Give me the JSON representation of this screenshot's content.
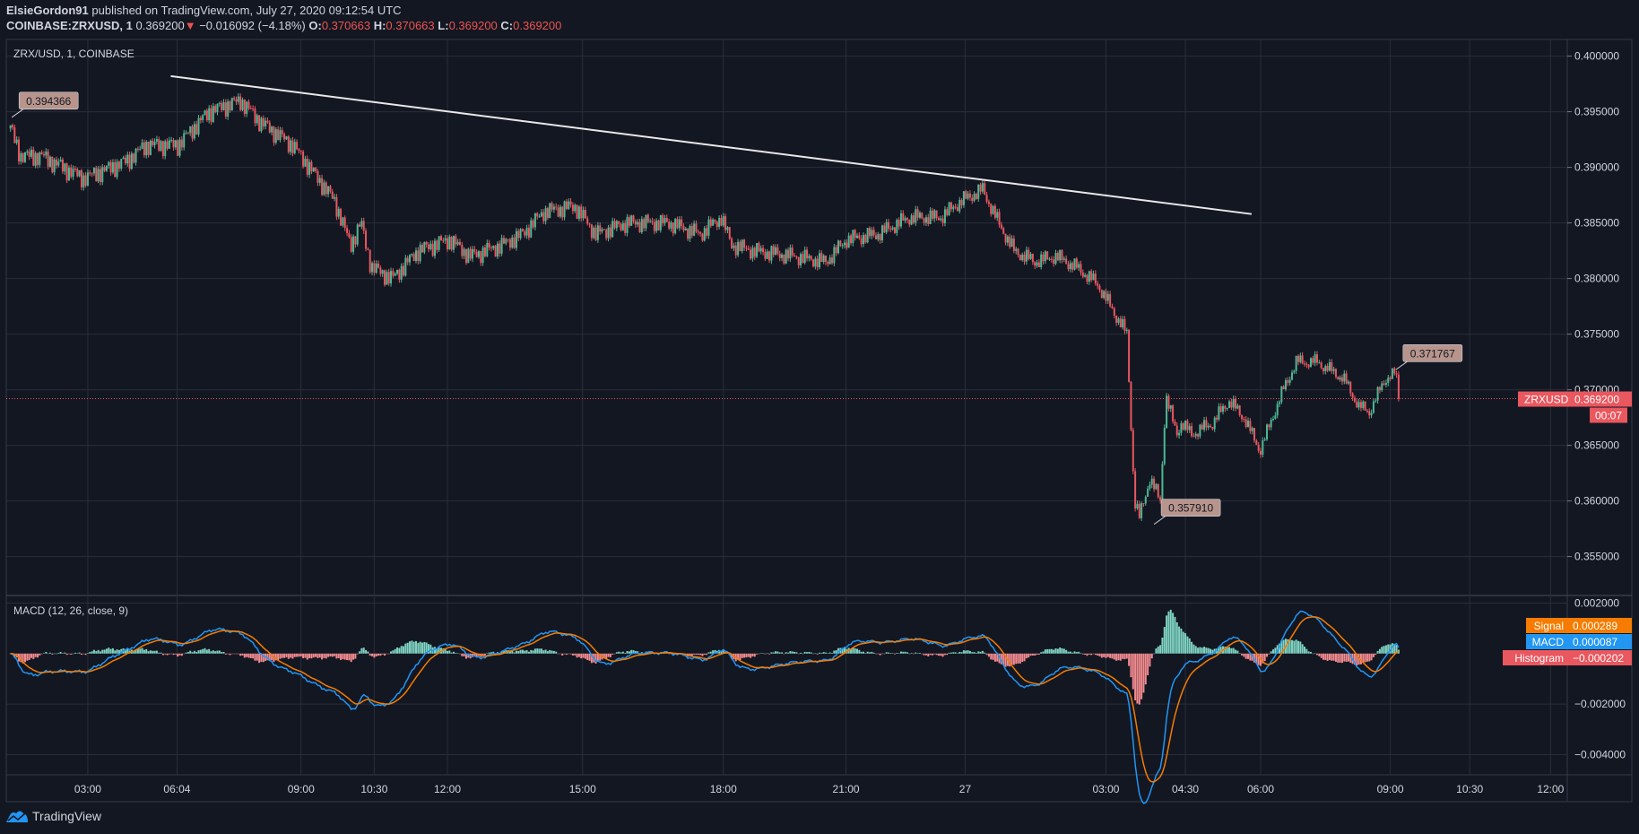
{
  "header": {
    "author": "ElsieGordon91",
    "published": "published on TradingView.com, July 27, 2020 09:12:54 UTC",
    "symbol": "COINBASE:ZRXUSD, 1",
    "last": "0.369200",
    "change": "−0.016092 (−4.18%)",
    "o_label": "O:",
    "o": "0.370663",
    "h_label": "H:",
    "h": "0.370663",
    "l_label": "L:",
    "l": "0.369200",
    "c_label": "C:",
    "c": "0.369200"
  },
  "main_pane_title": "ZRX/USD, 1, COINBASE",
  "macd_pane_title": "MACD (12, 26, close, 9)",
  "footer": {
    "brand": "TradingView",
    "icon": "tradingview-cloud-logo"
  },
  "colors": {
    "bg": "#131722",
    "grid": "#2a2e39",
    "up": "#4db895",
    "down": "#e9575f",
    "macd": "#2196f3",
    "signal": "#f57c00",
    "trend": "#e8e8e8",
    "tag": "#b7958c"
  },
  "chart_data": [
    {
      "type": "candlestick",
      "title": "ZRX/USD, 1, COINBASE",
      "x_unit": "1-minute bar index",
      "ylim": [
        0.3515,
        0.4015
      ],
      "y_ticks": [
        0.4,
        0.395,
        0.39,
        0.385,
        0.38,
        0.375,
        0.37,
        0.365,
        0.36,
        0.355
      ],
      "y_tick_labels": [
        "0.400000",
        "0.395000",
        "0.390000",
        "0.385000",
        "0.380000",
        "0.375000",
        "0.370000",
        "0.365000",
        "0.360000",
        "0.355000"
      ],
      "x_range": [
        -6,
        2234
      ],
      "x_ticks": [
        111,
        239,
        417,
        522,
        627,
        821,
        1023,
        1199,
        1370,
        1572,
        1686,
        1794,
        1980,
        2094,
        2210
      ],
      "x_tick_labels": [
        "03:00",
        "06:04",
        "09:00",
        "10:30",
        "12:00",
        "15:00",
        "18:00",
        "21:00",
        "27",
        "03:00",
        "04:30",
        "06:00",
        "09:00",
        "10:30",
        "12:00"
      ],
      "close_path": [
        [
          0,
          0.3935
        ],
        [
          15,
          0.391
        ],
        [
          45,
          0.391
        ],
        [
          105,
          0.389
        ],
        [
          165,
          0.3905
        ],
        [
          195,
          0.392
        ],
        [
          240,
          0.392
        ],
        [
          285,
          0.395
        ],
        [
          330,
          0.396
        ],
        [
          360,
          0.394
        ],
        [
          405,
          0.392
        ],
        [
          435,
          0.3895
        ],
        [
          465,
          0.387
        ],
        [
          488,
          0.383
        ],
        [
          503,
          0.385
        ],
        [
          518,
          0.381
        ],
        [
          548,
          0.38
        ],
        [
          585,
          0.3825
        ],
        [
          630,
          0.3835
        ],
        [
          660,
          0.382
        ],
        [
          705,
          0.383
        ],
        [
          735,
          0.384
        ],
        [
          765,
          0.386
        ],
        [
          810,
          0.3865
        ],
        [
          840,
          0.384
        ],
        [
          885,
          0.385
        ],
        [
          945,
          0.385
        ],
        [
          990,
          0.384
        ],
        [
          1020,
          0.3855
        ],
        [
          1035,
          0.383
        ],
        [
          1065,
          0.3825
        ],
        [
          1125,
          0.382
        ],
        [
          1170,
          0.3815
        ],
        [
          1200,
          0.3835
        ],
        [
          1245,
          0.384
        ],
        [
          1290,
          0.3855
        ],
        [
          1335,
          0.3855
        ],
        [
          1365,
          0.387
        ],
        [
          1395,
          0.388
        ],
        [
          1418,
          0.385
        ],
        [
          1440,
          0.3825
        ],
        [
          1470,
          0.3815
        ],
        [
          1500,
          0.382
        ],
        [
          1530,
          0.381
        ],
        [
          1560,
          0.3795
        ],
        [
          1583,
          0.377
        ],
        [
          1602,
          0.375
        ],
        [
          1613,
          0.36
        ],
        [
          1620,
          0.3585
        ],
        [
          1635,
          0.362
        ],
        [
          1650,
          0.36
        ],
        [
          1658,
          0.3695
        ],
        [
          1673,
          0.366
        ],
        [
          1680,
          0.367
        ],
        [
          1695,
          0.366
        ],
        [
          1725,
          0.367
        ],
        [
          1748,
          0.369
        ],
        [
          1770,
          0.3675
        ],
        [
          1793,
          0.3645
        ],
        [
          1808,
          0.367
        ],
        [
          1823,
          0.3695
        ],
        [
          1845,
          0.3725
        ],
        [
          1875,
          0.3725
        ],
        [
          1913,
          0.371
        ],
        [
          1935,
          0.3685
        ],
        [
          1950,
          0.368
        ],
        [
          1973,
          0.371
        ],
        [
          1988,
          0.3715
        ],
        [
          1992,
          0.3692
        ]
      ],
      "trend_line": [
        [
          230,
          0.3982
        ],
        [
          1781,
          0.3858
        ]
      ],
      "price_labels": [
        {
          "bar": 2,
          "price": 0.3945,
          "text": "0.394366"
        },
        {
          "bar": 1641,
          "price": 0.3579,
          "text": "0.357910"
        },
        {
          "bar": 1988,
          "price": 0.3718,
          "text": "0.371767"
        }
      ],
      "last_price": 0.3692,
      "last_price_tag": {
        "symbol": "ZRXUSD",
        "value": "0.369200",
        "countdown": "00:07"
      }
    },
    {
      "type": "line",
      "title": "MACD (12, 26, close, 9)",
      "ylim": [
        -0.0048,
        0.0023
      ],
      "y_ticks": [
        0.002,
        -0.002,
        -0.004
      ],
      "y_tick_labels": [
        "0.002000",
        "−0.002000",
        "−0.004000"
      ],
      "series": [
        {
          "name": "Signal",
          "value": "0.000289"
        },
        {
          "name": "MACD",
          "value": "0.000087"
        },
        {
          "name": "Histogram",
          "value": "−0.000202"
        }
      ]
    }
  ]
}
